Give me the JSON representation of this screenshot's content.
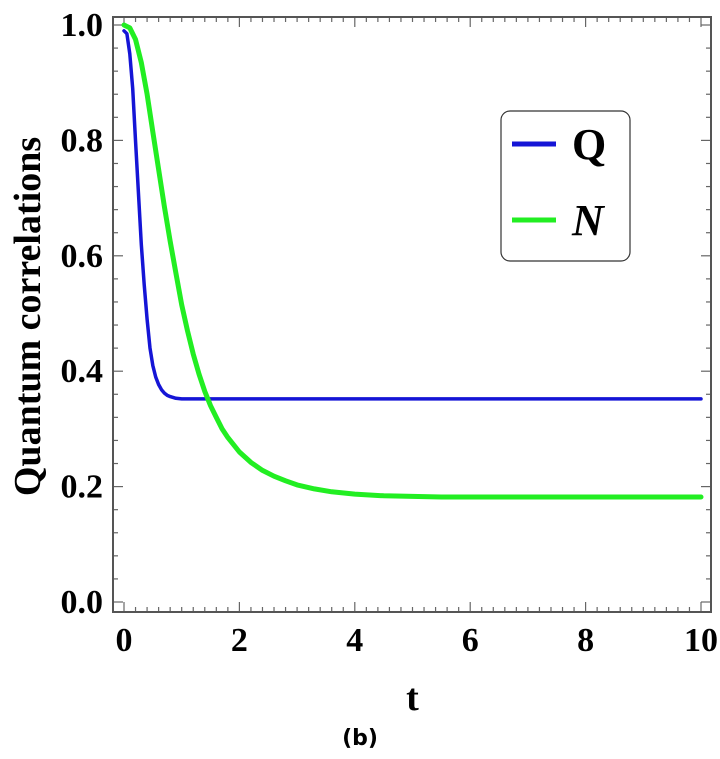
{
  "caption": "(b)",
  "chart_data": {
    "type": "line",
    "xlabel": "t",
    "ylabel": "Quantum correlations",
    "xlim": [
      0,
      10
    ],
    "ylim": [
      0,
      1
    ],
    "xticks": [
      0,
      2,
      4,
      6,
      8,
      10
    ],
    "xtick_labels": [
      "0",
      "2",
      "4",
      "6",
      "8",
      "10"
    ],
    "yticks": [
      0.0,
      0.2,
      0.4,
      0.6,
      0.8,
      1.0
    ],
    "ytick_labels": [
      "0.0",
      "0.2",
      "0.4",
      "0.6",
      "0.8",
      "1.0"
    ],
    "grid": false,
    "legend_position": "top-right",
    "series": [
      {
        "name": "Q",
        "color": "#1515d6",
        "x": [
          0.0,
          0.05,
          0.1,
          0.15,
          0.2,
          0.25,
          0.3,
          0.35,
          0.4,
          0.45,
          0.5,
          0.55,
          0.6,
          0.65,
          0.7,
          0.75,
          0.8,
          0.9,
          1.0,
          1.1,
          1.2,
          1.4,
          1.7,
          2.0,
          3.0,
          4.0,
          6.0,
          8.0,
          10.0
        ],
        "values": [
          0.99,
          0.985,
          0.95,
          0.89,
          0.8,
          0.71,
          0.62,
          0.55,
          0.49,
          0.44,
          0.41,
          0.39,
          0.377,
          0.368,
          0.362,
          0.358,
          0.356,
          0.353,
          0.352,
          0.352,
          0.352,
          0.352,
          0.352,
          0.352,
          0.352,
          0.352,
          0.352,
          0.352,
          0.352
        ]
      },
      {
        "name": "N",
        "color": "#22ee22",
        "x": [
          0.0,
          0.1,
          0.2,
          0.3,
          0.4,
          0.5,
          0.6,
          0.7,
          0.8,
          0.9,
          1.0,
          1.1,
          1.2,
          1.3,
          1.4,
          1.5,
          1.6,
          1.7,
          1.8,
          2.0,
          2.2,
          2.4,
          2.6,
          2.8,
          3.0,
          3.3,
          3.6,
          4.0,
          4.5,
          5.0,
          5.5,
          6.0,
          7.0,
          8.0,
          9.0,
          10.0
        ],
        "values": [
          1.0,
          0.995,
          0.975,
          0.935,
          0.88,
          0.815,
          0.75,
          0.685,
          0.625,
          0.57,
          0.515,
          0.47,
          0.43,
          0.395,
          0.365,
          0.34,
          0.32,
          0.3,
          0.285,
          0.26,
          0.242,
          0.228,
          0.218,
          0.21,
          0.203,
          0.196,
          0.191,
          0.187,
          0.184,
          0.183,
          0.182,
          0.182,
          0.182,
          0.182,
          0.182,
          0.182
        ]
      }
    ]
  }
}
